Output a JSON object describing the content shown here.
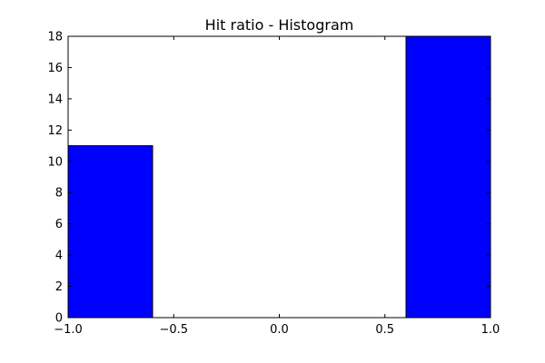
{
  "chart_data": {
    "type": "bar",
    "title": "Hit ratio - Histogram",
    "xlabel": "",
    "ylabel": "",
    "xlim": [
      -1.0,
      1.0
    ],
    "ylim": [
      0,
      18
    ],
    "grid": false,
    "bins": [
      {
        "x0": -1.0,
        "x1": -0.6,
        "value": 11
      },
      {
        "x0": -0.6,
        "x1": -0.2,
        "value": 0
      },
      {
        "x0": -0.2,
        "x1": 0.2,
        "value": 0
      },
      {
        "x0": 0.2,
        "x1": 0.6,
        "value": 0
      },
      {
        "x0": 0.6,
        "x1": 1.0,
        "value": 18
      }
    ],
    "x_ticks": [
      -1.0,
      -0.5,
      0.0,
      0.5,
      1.0
    ],
    "x_tick_labels": [
      "−1.0",
      "−0.5",
      "0.0",
      "0.5",
      "1.0"
    ],
    "y_ticks": [
      0,
      2,
      4,
      6,
      8,
      10,
      12,
      14,
      16,
      18
    ],
    "y_tick_labels": [
      "0",
      "2",
      "4",
      "6",
      "8",
      "10",
      "12",
      "14",
      "16",
      "18"
    ],
    "colors": {
      "bar": "#0000ff",
      "edge": "#000000"
    }
  }
}
